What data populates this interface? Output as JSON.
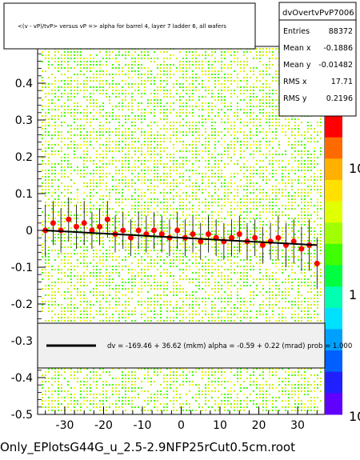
{
  "title_box": {
    "text": "<(v - vP)/tvP> versus   vP => alpha for barrel 4, layer 7 ladder 6, all wafers"
  },
  "stats_box": {
    "name": "dvOvertvPvP7006",
    "rows": [
      {
        "label": "Entries",
        "value": "88372"
      },
      {
        "label": "Mean x",
        "value": "-0.1886"
      },
      {
        "label": "Mean y",
        "value": "-0.01482"
      },
      {
        "label": "RMS x",
        "value": "17.71"
      },
      {
        "label": "RMS y",
        "value": "0.2196"
      }
    ]
  },
  "fit_legend": {
    "text": "dv = -169.46 + 36.62 (mkm) alpha =   -0.59 +  0.22 (mrad) prob = 1.000"
  },
  "footer": {
    "text": "Only_EPlotsG44G_u_2.5-2.9NFP25rCut0.5cm.root"
  },
  "colors": {
    "background_2d": "#c8f000",
    "dense_2d": "#44ff00",
    "sparse_2d": "#ffff00",
    "profile_points": "#ff0000",
    "fit_line": "#000000"
  },
  "chart_data": {
    "type": "scatter",
    "xlim": [
      -37,
      37
    ],
    "ylim": [
      -0.5,
      0.5
    ],
    "x_ticks": [
      "-30",
      "-20",
      "-10",
      "0",
      "10",
      "20",
      "30"
    ],
    "y_ticks": [
      "-0.5",
      "-0.4",
      "-0.3",
      "-0.2",
      "-0.1",
      "0",
      "0.1",
      "0.2",
      "0.3",
      "0.4"
    ],
    "z_ticks": [
      "10",
      "1",
      "10"
    ],
    "z_scale": "log",
    "fit_line": {
      "x": [
        -35,
        35
      ],
      "y": [
        -0.0,
        -0.04
      ]
    },
    "profile": {
      "x": [
        -35,
        -33,
        -31,
        -29,
        -27,
        -25,
        -23,
        -21,
        -19,
        -17,
        -15,
        -13,
        -11,
        -9,
        -7,
        -5,
        -3,
        -1,
        1,
        3,
        5,
        7,
        9,
        11,
        13,
        15,
        17,
        19,
        21,
        23,
        25,
        27,
        29,
        31,
        33,
        35
      ],
      "y": [
        0.0,
        0.02,
        0.0,
        0.03,
        0.01,
        0.02,
        0.0,
        0.01,
        0.03,
        -0.01,
        0.0,
        -0.02,
        0.0,
        -0.01,
        0.0,
        -0.01,
        -0.02,
        0.0,
        -0.02,
        -0.01,
        -0.03,
        -0.01,
        -0.02,
        -0.03,
        -0.02,
        -0.01,
        -0.03,
        -0.02,
        -0.04,
        -0.03,
        -0.02,
        -0.04,
        -0.03,
        -0.05,
        -0.04,
        -0.09
      ],
      "err": [
        0.07,
        0.06,
        0.06,
        0.06,
        0.06,
        0.06,
        0.05,
        0.05,
        0.05,
        0.05,
        0.05,
        0.05,
        0.05,
        0.05,
        0.05,
        0.05,
        0.05,
        0.05,
        0.05,
        0.05,
        0.05,
        0.05,
        0.05,
        0.05,
        0.05,
        0.05,
        0.05,
        0.05,
        0.05,
        0.05,
        0.06,
        0.06,
        0.06,
        0.06,
        0.07,
        0.07
      ]
    }
  }
}
